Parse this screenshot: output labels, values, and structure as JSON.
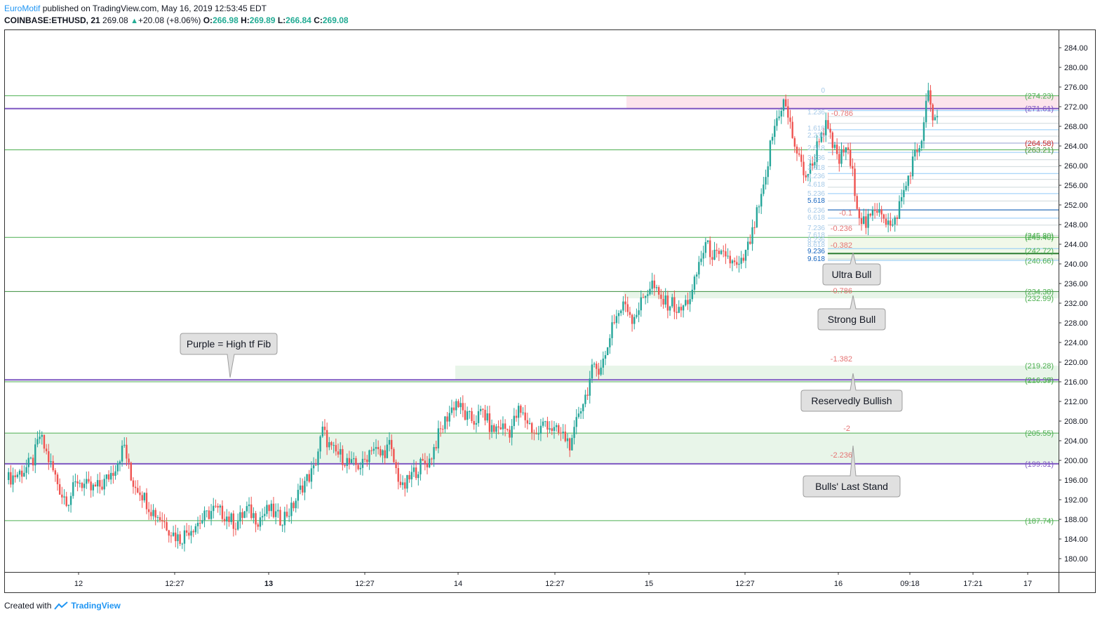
{
  "header": {
    "publisher": "EuroMotif",
    "published_text": " published on TradingView.com, May 16, 2019 12:53:45 EDT",
    "symbol": "COINBASE:ETHUSD, 21",
    "last": "269.08",
    "change": "+20.08 (+8.06%)",
    "o_label": "O:",
    "o": "266.98",
    "h_label": "H:",
    "h": "269.89",
    "l_label": "L:",
    "l": "266.84",
    "c_label": "C:",
    "c": "269.08"
  },
  "footer": {
    "created_with": "Created with",
    "brand": "TradingView"
  },
  "colors": {
    "up": "#26a69a",
    "down": "#ef5350",
    "support": "#4caf50",
    "fib_purple": "#7e57c2",
    "zone_green": "#e8f5e9",
    "zone_pink": "#fce4ec"
  },
  "chart_data": {
    "type": "candlestick",
    "symbol": "COINBASE:ETHUSD",
    "timeframe": "21",
    "ylim": [
      176,
      286
    ],
    "y_ticks": [
      "284.00",
      "280.00",
      "276.00",
      "272.00",
      "268.00",
      "264.00",
      "260.00",
      "256.00",
      "252.00",
      "248.00",
      "244.00",
      "240.00",
      "236.00",
      "232.00",
      "228.00",
      "224.00",
      "220.00",
      "216.00",
      "212.00",
      "208.00",
      "204.00",
      "200.00",
      "196.00",
      "192.00",
      "188.00",
      "184.00",
      "180.00"
    ],
    "x_ticks": [
      "12",
      "12:27",
      "13",
      "12:27",
      "14",
      "12:27",
      "15",
      "12:27",
      "16",
      "09:18",
      "17:21",
      "17"
    ],
    "x_ticks_bold": [
      "13"
    ],
    "close_path": [
      [
        0,
        196
      ],
      [
        8,
        198
      ],
      [
        12,
        200
      ],
      [
        15,
        205
      ],
      [
        20,
        199
      ],
      [
        25,
        193
      ],
      [
        28,
        192
      ],
      [
        32,
        196
      ],
      [
        38,
        194
      ],
      [
        43,
        195
      ],
      [
        48,
        198
      ],
      [
        53,
        203
      ],
      [
        56,
        196
      ],
      [
        60,
        194
      ],
      [
        65,
        190
      ],
      [
        70,
        188
      ],
      [
        75,
        185
      ],
      [
        78,
        184
      ],
      [
        82,
        186
      ],
      [
        88,
        188
      ],
      [
        93,
        190
      ],
      [
        98,
        189
      ],
      [
        103,
        187
      ],
      [
        108,
        190
      ],
      [
        113,
        188
      ],
      [
        118,
        190
      ],
      [
        123,
        188
      ],
      [
        128,
        190
      ],
      [
        133,
        195
      ],
      [
        138,
        198
      ],
      [
        142,
        206
      ],
      [
        146,
        202
      ],
      [
        150,
        201
      ],
      [
        155,
        199
      ],
      [
        160,
        199
      ],
      [
        164,
        203
      ],
      [
        168,
        201
      ],
      [
        172,
        203
      ],
      [
        175,
        198
      ],
      [
        178,
        194
      ],
      [
        182,
        197
      ],
      [
        186,
        199
      ],
      [
        190,
        200
      ],
      [
        194,
        205
      ],
      [
        198,
        209
      ],
      [
        202,
        212
      ],
      [
        206,
        209
      ],
      [
        210,
        208
      ],
      [
        214,
        210
      ],
      [
        218,
        206
      ],
      [
        222,
        207
      ],
      [
        226,
        206
      ],
      [
        230,
        210
      ],
      [
        234,
        208
      ],
      [
        238,
        205
      ],
      [
        242,
        208
      ],
      [
        246,
        206
      ],
      [
        250,
        205
      ],
      [
        254,
        203
      ],
      [
        257,
        210
      ],
      [
        260,
        213
      ],
      [
        263,
        218
      ],
      [
        266,
        219
      ],
      [
        269,
        221
      ],
      [
        272,
        228
      ],
      [
        275,
        230
      ],
      [
        278,
        232
      ],
      [
        281,
        229
      ],
      [
        284,
        231
      ],
      [
        287,
        234
      ],
      [
        290,
        236
      ],
      [
        293,
        233
      ],
      [
        296,
        232
      ],
      [
        299,
        232
      ],
      [
        302,
        230
      ],
      [
        305,
        232
      ],
      [
        308,
        234
      ],
      [
        311,
        240
      ],
      [
        314,
        244
      ],
      [
        317,
        242
      ],
      [
        320,
        241
      ],
      [
        323,
        242
      ],
      [
        326,
        240
      ],
      [
        329,
        239
      ],
      [
        332,
        242
      ],
      [
        335,
        246
      ],
      [
        337,
        250
      ],
      [
        339,
        253
      ],
      [
        341,
        257
      ],
      [
        343,
        264
      ],
      [
        345,
        268
      ],
      [
        347,
        271
      ],
      [
        349,
        273
      ],
      [
        351,
        270
      ],
      [
        353,
        266
      ],
      [
        356,
        261
      ],
      [
        359,
        258
      ],
      [
        362,
        260
      ],
      [
        365,
        266
      ],
      [
        368,
        268
      ],
      [
        371,
        264
      ],
      [
        374,
        261
      ],
      [
        377,
        264
      ],
      [
        380,
        258
      ],
      [
        383,
        250
      ],
      [
        386,
        248
      ],
      [
        389,
        250
      ],
      [
        392,
        252
      ],
      [
        395,
        249
      ],
      [
        398,
        247
      ],
      [
        401,
        252
      ],
      [
        404,
        256
      ],
      [
        407,
        261
      ],
      [
        410,
        264
      ],
      [
        412,
        268
      ],
      [
        414,
        276
      ],
      [
        416,
        268
      ],
      [
        418,
        270
      ]
    ],
    "fib_retracement_left_labels": [
      "0",
      "1.236",
      "1.618",
      "2.236",
      "2.618",
      "3.236",
      "3.618",
      "4.236",
      "4.618",
      "5.236",
      "5.618",
      "6.236",
      "6.618",
      "7.236",
      "7.618",
      "8.236",
      "8.618",
      "9.236",
      "9.618"
    ],
    "fib_extension_labels": [
      "-0.786",
      "-0.1",
      "-0.236",
      "-0.382",
      "-0.786",
      "-1.382",
      "-2",
      "-2.236"
    ],
    "levels": [
      {
        "value": 274.23,
        "label": "(274.23)",
        "color": "#4caf50"
      },
      {
        "value": 271.61,
        "label": "(271.61)",
        "color": "#7e57c2"
      },
      {
        "value": 264.58,
        "label": "(264.58)",
        "color": "#c62828"
      },
      {
        "value": 263.21,
        "label": "(263.21)",
        "color": "#c62828"
      },
      {
        "value": 263.21,
        "label": "(263.21)",
        "color": "#4caf50"
      },
      {
        "value": 245.8,
        "label": "(245.80)",
        "color": "#4caf50"
      },
      {
        "value": 245.4,
        "label": "(245.40)",
        "color": "#4caf50"
      },
      {
        "value": 242.72,
        "label": "(242.72)",
        "color": "#4caf50"
      },
      {
        "value": 240.66,
        "label": "(240.66)",
        "color": "#4caf50"
      },
      {
        "value": 234.38,
        "label": "(234.38)",
        "color": "#4caf50"
      },
      {
        "value": 232.99,
        "label": "(232.99)",
        "color": "#4caf50"
      },
      {
        "value": 219.28,
        "label": "(219.28)",
        "color": "#4caf50"
      },
      {
        "value": 216.39,
        "label": "(216.39)",
        "color": "#4caf50"
      },
      {
        "value": 216.37,
        "label": "(216.37)",
        "color": "#4caf50"
      },
      {
        "value": 205.55,
        "label": "(205.55)",
        "color": "#4caf50"
      },
      {
        "value": 199.31,
        "label": "(199.31)",
        "color": "#7e57c2"
      },
      {
        "value": 187.74,
        "label": "(187.74)",
        "color": "#4caf50"
      }
    ],
    "annotations": [
      {
        "text": "Purple = High tf Fib",
        "pointer": "down"
      },
      {
        "text": "Ultra Bull",
        "pointer": "up"
      },
      {
        "text": "Strong Bull",
        "pointer": "up"
      },
      {
        "text": "Reservedly Bullish",
        "pointer": "up"
      },
      {
        "text": "Bulls' Last Stand",
        "pointer": "up"
      }
    ]
  }
}
